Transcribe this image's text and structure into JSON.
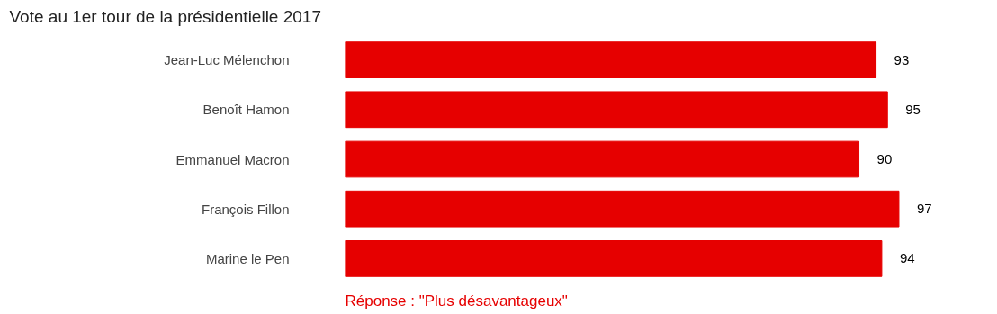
{
  "chart_data": {
    "type": "bar",
    "orientation": "horizontal",
    "title": "Vote au 1er tour de la présidentielle 2017",
    "categories": [
      "Jean-Luc Mélenchon",
      "Benoît Hamon",
      "Emmanuel Macron",
      "François Fillon",
      "Marine le Pen"
    ],
    "values": [
      93,
      95,
      90,
      97,
      94
    ],
    "color": "#e60000",
    "data_labels": true,
    "annotations": [
      "Réponse : \"Plus désavantageux\""
    ]
  }
}
